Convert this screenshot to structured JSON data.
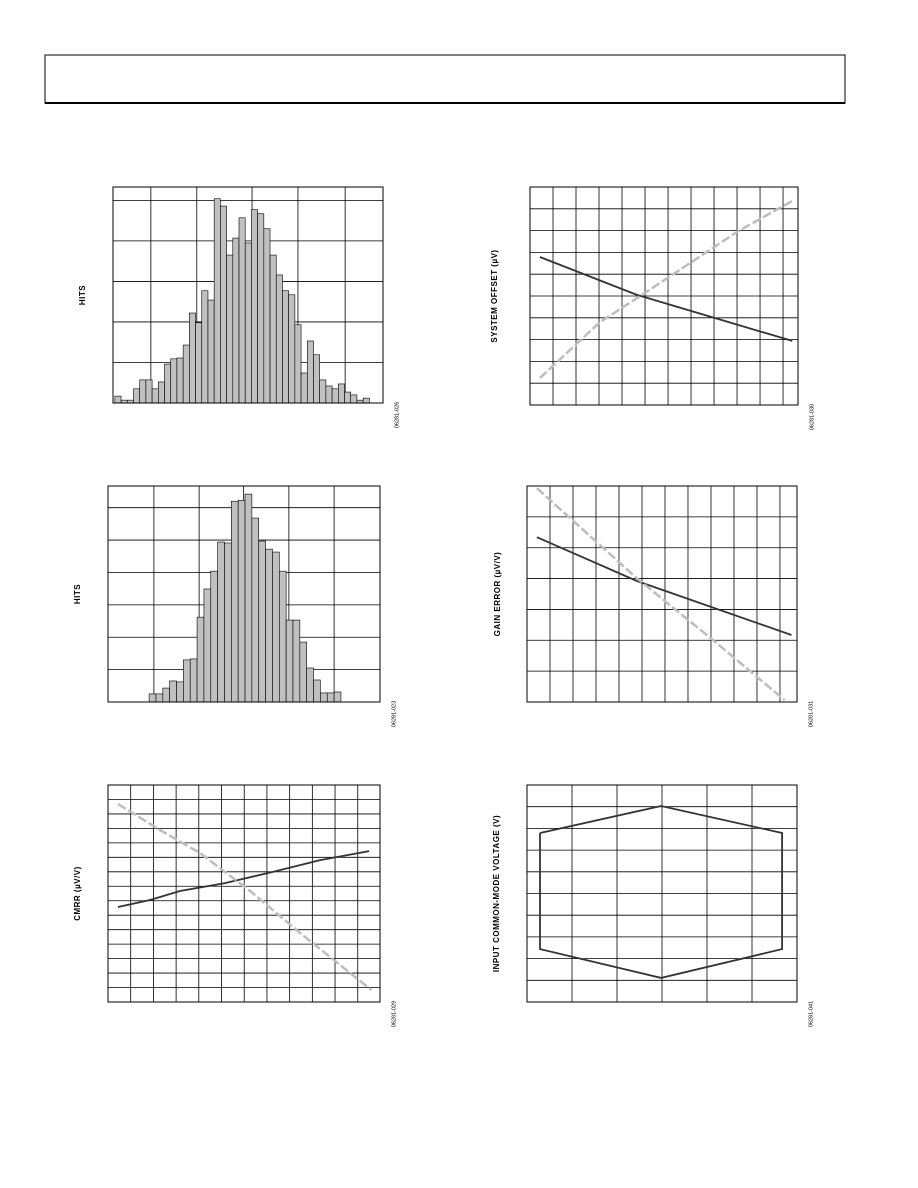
{
  "chart_data": [
    {
      "type": "histogram",
      "y_label": "HITS",
      "figure_code": "06281-026",
      "color": "#c0c0c0",
      "bins": [
        0,
        1,
        2,
        3,
        4,
        5,
        6,
        7,
        8,
        9,
        10,
        11,
        12,
        13,
        14,
        15,
        16,
        17,
        18,
        19,
        20,
        21,
        22,
        23,
        24,
        25,
        26,
        27,
        28,
        29,
        30,
        31,
        32,
        33,
        34,
        35,
        36,
        37,
        38,
        39,
        40,
        41
      ],
      "values": [
        0.17,
        0.07,
        0.07,
        0.35,
        0.57,
        0.57,
        0.35,
        0.52,
        0.96,
        1.09,
        1.11,
        1.43,
        2.22,
        1.98,
        2.77,
        2.54,
        5.04,
        4.86,
        3.65,
        4.07,
        4.57,
        3.95,
        4.77,
        4.67,
        4.3,
        3.65,
        3.16,
        2.77,
        2.67,
        1.93,
        0.74,
        1.53,
        1.19,
        0.57,
        0.42,
        0.35,
        0.47,
        0.27,
        0.2,
        0.07,
        0.12
      ],
      "xlim": [
        -0.3,
        43.2
      ],
      "ylim": [
        0,
        5.33
      ],
      "xticks": [
        5.8,
        13.2,
        22.1,
        29.5,
        37.1
      ],
      "yticks": [
        1,
        2,
        3,
        4,
        5
      ],
      "grid": true
    },
    {
      "type": "line",
      "y_label": "SYSTEM OFFSET (µV)",
      "figure_code": "06281-030",
      "series": [
        {
          "color": "#333333",
          "x": [
            0.43,
            4.65,
            8.0,
            11.4
          ],
          "values": [
            6.79,
            5.05,
            4.0,
            2.94
          ]
        },
        {
          "color": "#bdbdbd",
          "dashed": true,
          "x": [
            0.43,
            3.04,
            5.0,
            9.0,
            11.4
          ],
          "values": [
            1.24,
            3.8,
            5.14,
            7.94,
            9.36
          ]
        }
      ],
      "xlim": [
        0,
        11.65
      ],
      "ylim": [
        0,
        10
      ],
      "xticks": [
        1,
        2,
        3,
        4,
        5,
        6,
        7,
        8,
        9,
        10,
        11
      ],
      "yticks": [
        1,
        2,
        3,
        4,
        5,
        6,
        7,
        8,
        9
      ],
      "grid": true
    },
    {
      "type": "histogram",
      "y_label": "HITS",
      "figure_code": "06281-023",
      "color": "#c0c0c0",
      "bins": [
        0,
        1,
        2,
        3,
        4,
        5,
        6,
        7,
        8,
        9,
        10,
        11,
        12,
        13,
        14,
        15,
        16,
        17,
        18,
        19,
        20,
        21,
        22,
        23,
        24,
        25,
        26,
        27,
        28
      ],
      "values": [
        0.25,
        0.25,
        0.43,
        0.65,
        0.62,
        1.3,
        1.33,
        2.62,
        3.49,
        4.04,
        4.94,
        4.91,
        6.2,
        6.23,
        6.42,
        5.68,
        4.97,
        4.72,
        4.63,
        4.04,
        2.53,
        2.53,
        1.85,
        1.05,
        0.68,
        0.28,
        0.28,
        0.31
      ],
      "xlim": [
        -6,
        33.7
      ],
      "ylim": [
        0,
        6.67
      ],
      "xticks": [
        0.7,
        7.3,
        13.8,
        20.4,
        27
      ],
      "yticks": [
        1,
        2,
        3,
        4,
        5,
        6
      ],
      "grid": true
    },
    {
      "type": "line",
      "y_label": "GAIN ERROR (µV/V)",
      "figure_code": "06281-031",
      "series": [
        {
          "color": "#333333",
          "x": [
            0.43,
            4.78,
            11.5
          ],
          "values": [
            5.34,
            3.92,
            2.17
          ]
        },
        {
          "color": "#bdbdbd",
          "dashed": true,
          "x": [
            0.43,
            4.78,
            8.1,
            11.2
          ],
          "values": [
            6.93,
            4.01,
            2.0,
            0.06
          ]
        }
      ],
      "xlim": [
        0,
        11.74
      ],
      "ylim": [
        0,
        7
      ],
      "xticks": [
        1,
        2,
        3,
        4,
        5,
        6,
        7,
        8,
        9,
        10,
        11
      ],
      "yticks": [
        1,
        2,
        3,
        4,
        5,
        6
      ],
      "grid": true
    },
    {
      "type": "line",
      "y_label": "CMRR (µV/V)",
      "figure_code": "06281-029",
      "series": [
        {
          "color": "#333333",
          "x": [
            0.44,
            1.85,
            3.17,
            5.15,
            7.22,
            9.34,
            11.5
          ],
          "values": [
            6.57,
            7.05,
            7.67,
            8.22,
            8.98,
            9.81,
            10.43
          ]
        },
        {
          "color": "#bdbdbd",
          "dashed": true,
          "x": [
            0.44,
            2.29,
            4.05,
            6.26,
            8.46,
            11.6
          ],
          "values": [
            13.68,
            11.89,
            10.3,
            7.67,
            4.77,
            0.83
          ]
        }
      ],
      "xlim": [
        0,
        11.98
      ],
      "ylim": [
        0,
        15
      ],
      "xticks": [
        1,
        2,
        3,
        4,
        5,
        6,
        7,
        8,
        9,
        10,
        11
      ],
      "yticks": [
        1,
        2,
        3,
        4,
        5,
        6,
        7,
        8,
        9,
        10,
        11,
        12,
        13,
        14
      ],
      "grid": true
    },
    {
      "type": "line",
      "y_label": "INPUT COMMON-MODE VOLTAGE (V)",
      "figure_code": "06281-041",
      "series": [
        {
          "color": "#333333",
          "x": [
            0.29,
            2.98,
            5.67,
            5.67,
            2.98,
            0.29,
            0.29
          ],
          "values": [
            7.79,
            9.03,
            7.79,
            2.44,
            1.11,
            2.44,
            7.79
          ]
        }
      ],
      "xlim": [
        0,
        6
      ],
      "ylim": [
        0,
        10
      ],
      "xticks": [
        1,
        2,
        3,
        4,
        5
      ],
      "yticks": [
        1,
        2,
        3,
        4,
        5,
        6,
        7,
        8,
        9
      ],
      "grid": true
    }
  ]
}
